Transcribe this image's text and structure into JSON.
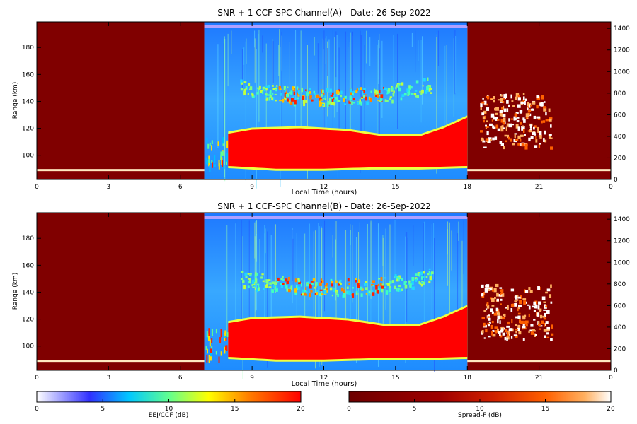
{
  "chart_data": [
    {
      "type": "heatmap",
      "panel": "A",
      "title": "SNR + 1 CCF-SPC Channel(A) - Date: 26-Sep-2022",
      "xlabel": "Local Time (hours)",
      "ylabel": "Range (km)",
      "x_ticks": [
        "0",
        "3",
        "6",
        "9",
        "12",
        "15",
        "18",
        "21",
        "0"
      ],
      "y_ticks": [
        100,
        120,
        140,
        160,
        180
      ],
      "y2_ticks": [
        0,
        200,
        400,
        600,
        800,
        1000,
        1200,
        1400
      ],
      "ylim": [
        82,
        199
      ],
      "y2lim": [
        0,
        1460
      ],
      "night_window_hours": [
        [
          0,
          7
        ],
        [
          18,
          24
        ]
      ],
      "day_window_hours": [
        7,
        18
      ],
      "features": {
        "night_layer_range_km": 89,
        "eej_strong_band": {
          "start_hour": 8.0,
          "end_hour": 18.0,
          "bottom_km": [
            [
              8,
              92
            ],
            [
              10,
              90
            ],
            [
              12,
              90
            ],
            [
              14,
              91
            ],
            [
              16,
              91
            ],
            [
              18,
              92
            ]
          ],
          "top_km": [
            [
              8,
              116
            ],
            [
              9,
              119
            ],
            [
              11,
              120
            ],
            [
              13,
              118
            ],
            [
              14.5,
              114
            ],
            [
              16,
              114
            ],
            [
              17,
              120
            ],
            [
              18,
              128
            ]
          ]
        },
        "ccf_echo_band": {
          "start_hour": 10.0,
          "end_hour": 14.5,
          "center_km": 144
        },
        "spread_f_region": {
          "start_hour": 18.5,
          "end_hour": 21.5,
          "alt_range_km": [
            300,
            800
          ]
        }
      }
    },
    {
      "type": "heatmap",
      "panel": "B",
      "title": "SNR + 1 CCF-SPC Channel(B) - Date: 26-Sep-2022",
      "xlabel": "Local Time (hours)",
      "ylabel": "Range (km)",
      "x_ticks": [
        "0",
        "3",
        "6",
        "9",
        "12",
        "15",
        "18",
        "21",
        "0"
      ],
      "y_ticks": [
        100,
        120,
        140,
        160,
        180
      ],
      "y2_ticks": [
        0,
        200,
        400,
        600,
        800,
        1000,
        1200,
        1400
      ],
      "ylim": [
        82,
        199
      ],
      "y2lim": [
        0,
        1460
      ],
      "night_window_hours": [
        [
          0,
          7
        ],
        [
          18,
          24
        ]
      ],
      "day_window_hours": [
        7,
        18
      ],
      "features": {
        "night_layer_range_km": 89,
        "eej_strong_band": {
          "start_hour": 8.0,
          "end_hour": 18.0,
          "bottom_km": [
            [
              8,
              92
            ],
            [
              10,
              90
            ],
            [
              12,
              90
            ],
            [
              14,
              91
            ],
            [
              16,
              91
            ],
            [
              18,
              92
            ]
          ],
          "top_km": [
            [
              8,
              117
            ],
            [
              9,
              120
            ],
            [
              11,
              121
            ],
            [
              13,
              119
            ],
            [
              14.5,
              115
            ],
            [
              16,
              115
            ],
            [
              17,
              121
            ],
            [
              18,
              129
            ]
          ]
        },
        "ccf_echo_band": {
          "start_hour": 10.0,
          "end_hour": 14.5,
          "center_km": 144
        },
        "spread_f_region": {
          "start_hour": 18.5,
          "end_hour": 21.5,
          "alt_range_km": [
            300,
            800
          ]
        }
      }
    }
  ],
  "colorbars": [
    {
      "label": "EEJ/CCF (dB)",
      "range": [
        0,
        20
      ],
      "ticks": [
        "0",
        "5",
        "10",
        "15",
        "20"
      ],
      "colors": [
        "#ffffff",
        "#2020ff",
        "#00c8ff",
        "#60ff90",
        "#ffff00",
        "#ff8000",
        "#ff0000"
      ]
    },
    {
      "label": "Spread-F (dB)",
      "range": [
        0,
        20
      ],
      "ticks": [
        "0",
        "5",
        "10",
        "15",
        "20"
      ],
      "colors": [
        "#6e0000",
        "#a00000",
        "#d02000",
        "#ff6000",
        "#ffb060",
        "#ffffff"
      ]
    }
  ],
  "colors": {
    "night_background": "#800000",
    "eej_saturated": "#ff0000",
    "day_background": "#3aa0ff",
    "noise_strip": "#b0a0ff"
  }
}
